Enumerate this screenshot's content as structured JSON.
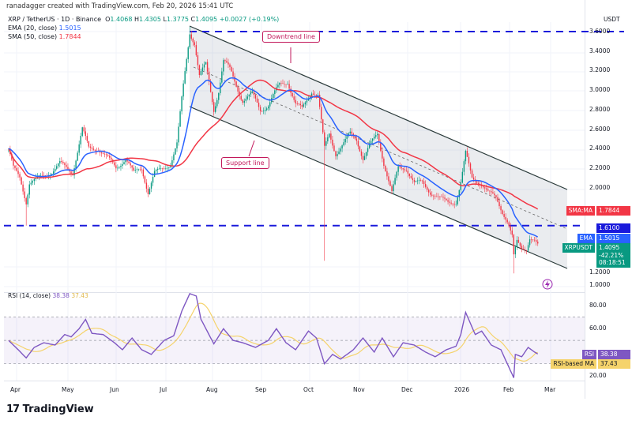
{
  "header": {
    "credit": "ranadagger created with TradingView.com, Feb 20, 2026 15:41 UTC",
    "symbol": "XRP / TetherUS · 1D · Binance",
    "open_label": "O",
    "open": "1.4068",
    "high_label": "H",
    "high": "1.4305",
    "low_label": "L",
    "low": "1.3775",
    "close_label": "C",
    "close": "1.4095",
    "change": "+0.0027 (+0.19%)",
    "ema_label": "EMA (20, close)",
    "ema_value": "1.5015",
    "sma_label": "SMA (50, close)",
    "sma_value": "1.7844"
  },
  "price_axis": {
    "currency": "USDT",
    "ticks": [
      "3.6000",
      "3.4000",
      "3.2000",
      "3.0000",
      "2.8000",
      "2.6000",
      "2.4000",
      "2.2000",
      "2.0000",
      "1.2000",
      "1.0000"
    ],
    "tags": {
      "sma_label": "SMA:MA",
      "sma_value": "1.7844",
      "level_value": "1.6100",
      "ema_label": "EMA",
      "ema_value": "1.5015",
      "symbol_label": "XRPUSDT",
      "last_value": "1.4095",
      "pct": "-42.21%",
      "countdown": "08:18:51"
    }
  },
  "annotations": {
    "downtrend": "Downtrend line",
    "support": "Support line"
  },
  "rsi": {
    "label": "RSI (14, close)",
    "value": "38.38",
    "ma_value": "37.43",
    "ticks": [
      "80.00",
      "60.00",
      "20.00"
    ],
    "tag_label": "RSI",
    "ma_tag_label": "RSI-based MA"
  },
  "time_axis": [
    "Apr",
    "May",
    "Jun",
    "Jul",
    "Aug",
    "Sep",
    "Oct",
    "Nov",
    "Dec",
    "2026",
    "Feb",
    "Mar"
  ],
  "brand": "TradingView",
  "colors": {
    "up": "#089981",
    "down": "#f23645",
    "ema": "#2962ff",
    "sma": "#f23645",
    "level": "#1a1adb",
    "rsi": "#7e57c2",
    "rsi_ma": "#f5d36b",
    "channel": "#2a3a3a"
  },
  "chart_data": {
    "type": "candlestick",
    "symbol": "XRPUSDT",
    "interval": "1D",
    "y_range": [
      1.0,
      3.7
    ],
    "horizontal_levels": [
      3.6,
      1.61
    ],
    "closes": [
      [
        "2025-03-27",
        2.4
      ],
      [
        "2025-03-30",
        2.2
      ],
      [
        "2025-04-03",
        2.1
      ],
      [
        "2025-04-07",
        1.85
      ],
      [
        "2025-04-09",
        2.05
      ],
      [
        "2025-04-15",
        2.1
      ],
      [
        "2025-04-22",
        2.15
      ],
      [
        "2025-04-28",
        2.25
      ],
      [
        "2025-05-02",
        2.2
      ],
      [
        "2025-05-06",
        2.15
      ],
      [
        "2025-05-10",
        2.45
      ],
      [
        "2025-05-12",
        2.6
      ],
      [
        "2025-05-16",
        2.4
      ],
      [
        "2025-05-22",
        2.4
      ],
      [
        "2025-05-28",
        2.3
      ],
      [
        "2025-06-02",
        2.2
      ],
      [
        "2025-06-08",
        2.3
      ],
      [
        "2025-06-13",
        2.15
      ],
      [
        "2025-06-18",
        2.2
      ],
      [
        "2025-06-22",
        1.95
      ],
      [
        "2025-06-26",
        2.15
      ],
      [
        "2025-07-02",
        2.2
      ],
      [
        "2025-07-06",
        2.25
      ],
      [
        "2025-07-10",
        2.45
      ],
      [
        "2025-07-13",
        2.9
      ],
      [
        "2025-07-17",
        3.45
      ],
      [
        "2025-07-18",
        3.6
      ],
      [
        "2025-07-21",
        3.5
      ],
      [
        "2025-07-24",
        3.15
      ],
      [
        "2025-07-28",
        3.25
      ],
      [
        "2025-08-02",
        2.8
      ],
      [
        "2025-08-05",
        3.0
      ],
      [
        "2025-08-08",
        3.3
      ],
      [
        "2025-08-12",
        3.2
      ],
      [
        "2025-08-16",
        3.05
      ],
      [
        "2025-08-20",
        2.9
      ],
      [
        "2025-08-26",
        2.95
      ],
      [
        "2025-08-31",
        2.8
      ],
      [
        "2025-09-05",
        2.85
      ],
      [
        "2025-09-12",
        3.05
      ],
      [
        "2025-09-17",
        3.1
      ],
      [
        "2025-09-22",
        2.85
      ],
      [
        "2025-09-26",
        2.8
      ],
      [
        "2025-10-02",
        3.0
      ],
      [
        "2025-10-06",
        2.95
      ],
      [
        "2025-10-10",
        2.4
      ],
      [
        "2025-10-13",
        2.55
      ],
      [
        "2025-10-17",
        2.35
      ],
      [
        "2025-10-22",
        2.45
      ],
      [
        "2025-10-26",
        2.55
      ],
      [
        "2025-10-30",
        2.5
      ],
      [
        "2025-11-03",
        2.3
      ],
      [
        "2025-11-08",
        2.45
      ],
      [
        "2025-11-12",
        2.55
      ],
      [
        "2025-11-16",
        2.25
      ],
      [
        "2025-11-21",
        1.95
      ],
      [
        "2025-11-25",
        2.2
      ],
      [
        "2025-11-30",
        2.2
      ],
      [
        "2025-12-05",
        2.05
      ],
      [
        "2025-12-10",
        2.05
      ],
      [
        "2025-12-15",
        1.95
      ],
      [
        "2025-12-20",
        1.9
      ],
      [
        "2025-12-26",
        1.85
      ],
      [
        "2025-12-31",
        1.85
      ],
      [
        "2026-01-03",
        2.05
      ],
      [
        "2026-01-06",
        2.35
      ],
      [
        "2026-01-10",
        2.1
      ],
      [
        "2026-01-15",
        2.05
      ],
      [
        "2026-01-20",
        1.95
      ],
      [
        "2026-01-25",
        1.9
      ],
      [
        "2026-01-29",
        1.75
      ],
      [
        "2026-02-01",
        1.65
      ],
      [
        "2026-02-04",
        1.5
      ],
      [
        "2026-02-05",
        1.3
      ],
      [
        "2026-02-07",
        1.45
      ],
      [
        "2026-02-10",
        1.38
      ],
      [
        "2026-02-13",
        1.37
      ],
      [
        "2026-02-15",
        1.48
      ],
      [
        "2026-02-18",
        1.45
      ],
      [
        "2026-02-20",
        1.41
      ]
    ],
    "notable_wicks": [
      [
        "2025-04-07",
        "low",
        1.61
      ],
      [
        "2025-07-18",
        "high",
        3.65
      ],
      [
        "2025-10-10",
        "low",
        1.25
      ],
      [
        "2026-02-05",
        "low",
        1.12
      ]
    ],
    "rsi_range": [
      10,
      100
    ],
    "rsi_levels": [
      70,
      50,
      30
    ],
    "rsi_values": [
      [
        "2025-03-27",
        50
      ],
      [
        "2025-04-02",
        42
      ],
      [
        "2025-04-07",
        35
      ],
      [
        "2025-04-12",
        44
      ],
      [
        "2025-04-18",
        48
      ],
      [
        "2025-04-25",
        46
      ],
      [
        "2025-05-01",
        55
      ],
      [
        "2025-05-05",
        53
      ],
      [
        "2025-05-10",
        60
      ],
      [
        "2025-05-14",
        68
      ],
      [
        "2025-05-18",
        56
      ],
      [
        "2025-05-25",
        55
      ],
      [
        "2025-06-01",
        48
      ],
      [
        "2025-06-06",
        42
      ],
      [
        "2025-06-12",
        52
      ],
      [
        "2025-06-18",
        42
      ],
      [
        "2025-06-24",
        38
      ],
      [
        "2025-07-02",
        50
      ],
      [
        "2025-07-08",
        54
      ],
      [
        "2025-07-13",
        75
      ],
      [
        "2025-07-18",
        90
      ],
      [
        "2025-07-22",
        88
      ],
      [
        "2025-07-25",
        68
      ],
      [
        "2025-08-02",
        47
      ],
      [
        "2025-08-08",
        60
      ],
      [
        "2025-08-14",
        50
      ],
      [
        "2025-08-20",
        48
      ],
      [
        "2025-08-28",
        44
      ],
      [
        "2025-09-05",
        50
      ],
      [
        "2025-09-10",
        60
      ],
      [
        "2025-09-16",
        48
      ],
      [
        "2025-09-22",
        42
      ],
      [
        "2025-09-30",
        58
      ],
      [
        "2025-10-05",
        52
      ],
      [
        "2025-10-10",
        30
      ],
      [
        "2025-10-15",
        38
      ],
      [
        "2025-10-20",
        34
      ],
      [
        "2025-10-28",
        42
      ],
      [
        "2025-11-03",
        52
      ],
      [
        "2025-11-10",
        40
      ],
      [
        "2025-11-15",
        52
      ],
      [
        "2025-11-22",
        36
      ],
      [
        "2025-11-28",
        48
      ],
      [
        "2025-12-05",
        46
      ],
      [
        "2025-12-12",
        40
      ],
      [
        "2025-12-18",
        36
      ],
      [
        "2025-12-25",
        42
      ],
      [
        "2025-12-31",
        45
      ],
      [
        "2026-01-03",
        55
      ],
      [
        "2026-01-06",
        74
      ],
      [
        "2026-01-12",
        55
      ],
      [
        "2026-01-16",
        58
      ],
      [
        "2026-01-22",
        46
      ],
      [
        "2026-01-28",
        42
      ],
      [
        "2026-02-01",
        30
      ],
      [
        "2026-02-05",
        18
      ],
      [
        "2026-02-06",
        38
      ],
      [
        "2026-02-10",
        36
      ],
      [
        "2026-02-14",
        44
      ],
      [
        "2026-02-18",
        40
      ],
      [
        "2026-02-20",
        38.38
      ]
    ]
  }
}
